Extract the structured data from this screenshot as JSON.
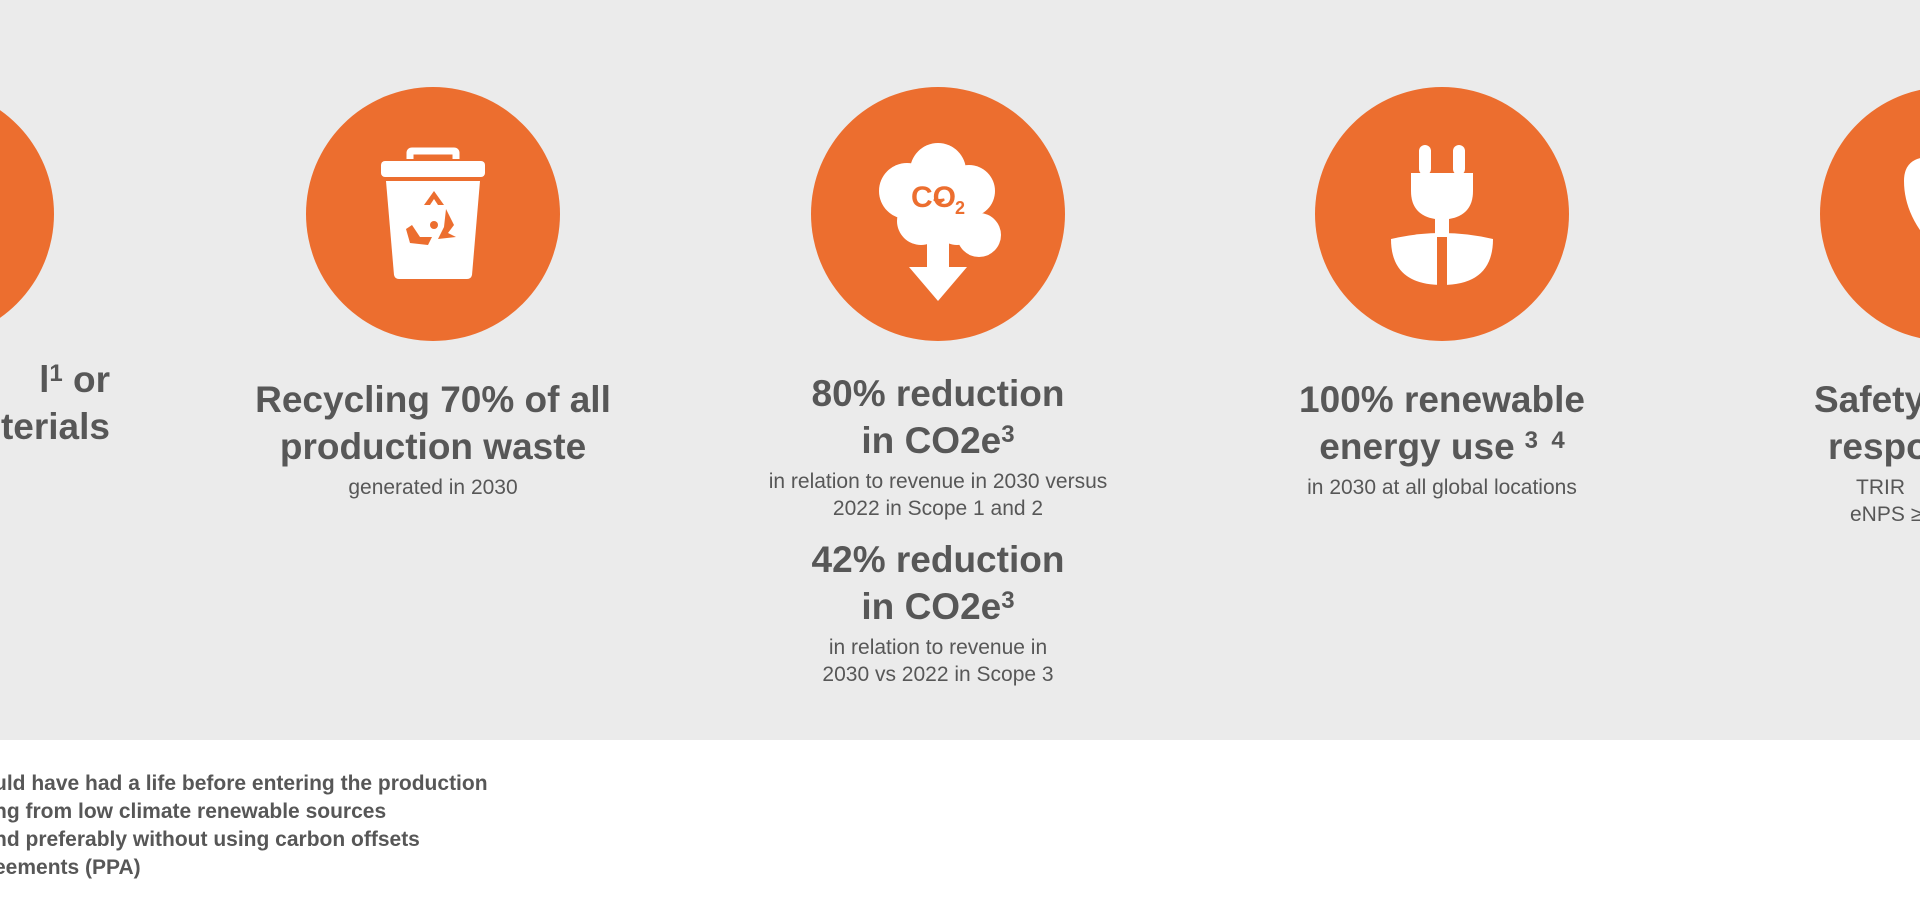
{
  "colors": {
    "accent": "#ec6e2f",
    "band": "#ebebeb",
    "text": "#575757"
  },
  "left_partial": {
    "line1": "l",
    "sup": "1",
    "line1_end": " or",
    "line2": "terials"
  },
  "recycling": {
    "icon": "recycle-bin-icon",
    "title_line1": "Recycling 70% of all",
    "title_line2": "production waste",
    "sub": "generated in 2030"
  },
  "co2": {
    "icon": "co2-cloud-down-icon",
    "icon_text": "CO",
    "icon_sub": "2",
    "title1_line1": "80% reduction",
    "title1_line2": "in CO2e",
    "title1_sup": "3",
    "sub1_line1": "in relation to revenue in 2030 versus",
    "sub1_line2": "2022 in Scope 1 and 2",
    "title2_line1": "42% reduction",
    "title2_line2": "in CO2e",
    "title2_sup": "3",
    "sub2_line1": "in relation to revenue in",
    "sub2_line2": "2030 vs 2022 in Scope 3"
  },
  "energy": {
    "icon": "plug-plant-icon",
    "title_line1": "100% renewable",
    "title_line2": "energy use",
    "title_sup": "3  4",
    "sub": "in 2030 at all global locations"
  },
  "safety": {
    "icon": "heart-icon",
    "title_line1": "Safety",
    "title_line2": "respo",
    "sub_line1": "TRIR",
    "sub_line2": "eNPS ≥"
  },
  "footnotes": [
    "uld have had a life before entering the production",
    "ng from low climate renewable sources",
    "nd preferably without using carbon offsets",
    "eements (PPA)"
  ]
}
